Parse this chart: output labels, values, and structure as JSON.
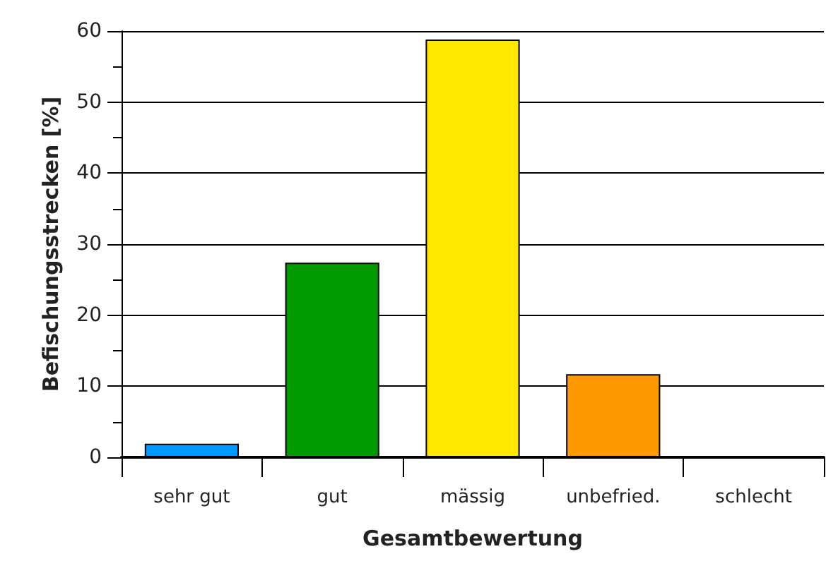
{
  "chart_data": {
    "type": "bar",
    "xlabel": "Gesamtbewertung",
    "ylabel": "Befischungsstrecken [%]",
    "categories": [
      "sehr gut",
      "gut",
      "mässig",
      "unbefried.",
      "schlecht"
    ],
    "values": [
      1.9,
      27.4,
      58.8,
      11.7,
      0
    ],
    "colors": [
      "#0099ff",
      "#009900",
      "#ffe800",
      "#ff9900",
      null
    ],
    "ylim": [
      0,
      60
    ],
    "yticks": [
      0,
      10,
      20,
      30,
      40,
      50,
      60
    ],
    "grid": "y"
  }
}
